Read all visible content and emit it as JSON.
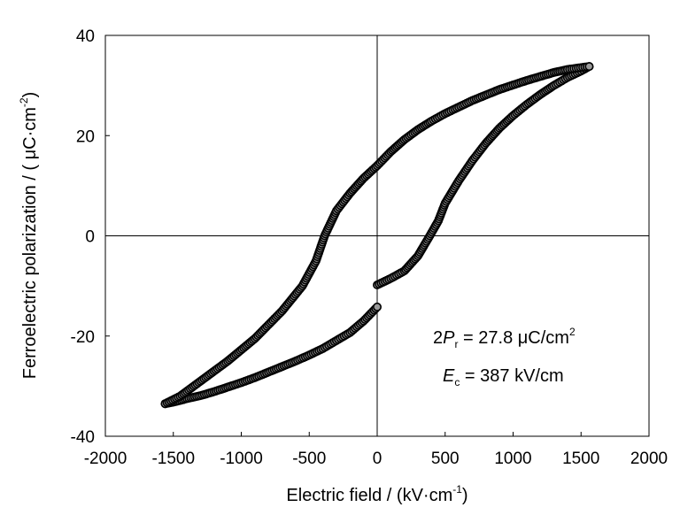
{
  "chart_data": {
    "type": "scatter",
    "title": "",
    "xlabel_main": "Electric field / (kV·cm",
    "xlabel_sup": "-1",
    "xlabel_close": ")",
    "ylabel_main": "Ferroelectric polarization / ( μC·cm",
    "ylabel_sup": "-2",
    "ylabel_close": ")",
    "xlim": [
      -2000,
      2000
    ],
    "ylim": [
      -40,
      40
    ],
    "xticks": [
      "-2000",
      "-1500",
      "-1000",
      "-500",
      "0",
      "500",
      "1000",
      "1500",
      "2000"
    ],
    "yticks": [
      "-40",
      "-20",
      "0",
      "20",
      "40"
    ],
    "grid": false,
    "annotations": {
      "pr_prefix": "2",
      "pr_symbol": "P",
      "pr_sub": "r",
      "pr_value": " = 27.8 μC/cm",
      "pr_sup": "2",
      "ec_symbol": "E",
      "ec_sub": "c",
      "ec_value": " = 387 kV/cm"
    },
    "series": [
      {
        "marker_color": "#000000",
        "upper_branch": {
          "x": [
            -1560,
            -1450,
            -1300,
            -1100,
            -900,
            -700,
            -550,
            -450,
            -387,
            -300,
            -200,
            -100,
            0,
            100,
            200,
            300,
            400,
            500,
            600,
            700,
            800,
            900,
            1000,
            1100,
            1200,
            1300,
            1400,
            1480,
            1560
          ],
          "y": [
            -33.5,
            -32,
            -29,
            -25,
            -20.5,
            -15,
            -10,
            -5,
            0,
            5,
            8.5,
            11.5,
            14,
            16.8,
            19.2,
            21.2,
            22.9,
            24.4,
            25.7,
            27,
            28.1,
            29.2,
            30.1,
            31,
            31.8,
            32.6,
            33.2,
            33.5,
            33.8
          ]
        },
        "lower_branch_right": {
          "x": [
            0,
            100,
            200,
            300,
            387,
            450,
            500,
            600,
            700,
            800,
            900,
            1000,
            1100,
            1200,
            1300,
            1400,
            1500,
            1560
          ],
          "y": [
            -9.8,
            -8.5,
            -7,
            -4,
            0,
            3,
            6.5,
            11,
            15,
            18.5,
            21.5,
            24,
            26.2,
            28.2,
            30,
            31.6,
            32.9,
            33.8
          ]
        },
        "lower_branch_left": {
          "x": [
            -1560,
            -1500,
            -1400,
            -1300,
            -1200,
            -1100,
            -1000,
            -900,
            -800,
            -700,
            -600,
            -500,
            -400,
            -300,
            -200,
            -100,
            0
          ],
          "y": [
            -33.5,
            -33.2,
            -32.5,
            -31.9,
            -31.1,
            -30.2,
            -29.3,
            -28.3,
            -27.2,
            -26.1,
            -25,
            -23.8,
            -22.5,
            -20.9,
            -19.3,
            -17,
            -14.2
          ]
        }
      }
    ]
  }
}
